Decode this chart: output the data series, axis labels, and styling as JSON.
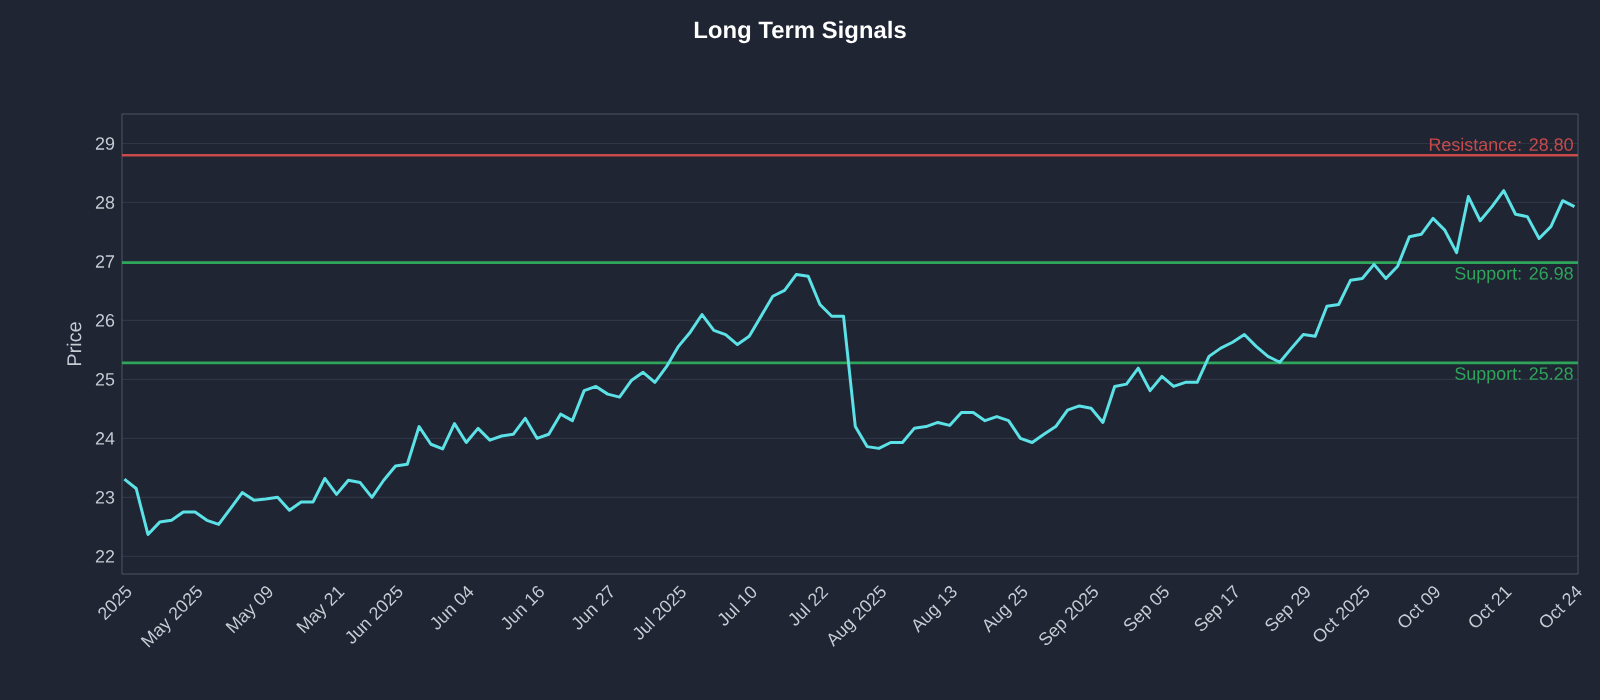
{
  "chart_data": {
    "type": "line",
    "title": "Long Term Signals",
    "ylabel": "Price",
    "categories": [
      "2025",
      null,
      null,
      null,
      null,
      null,
      "May 2025",
      null,
      null,
      null,
      null,
      null,
      "May 09",
      null,
      null,
      null,
      null,
      null,
      "May 21",
      null,
      null,
      null,
      null,
      "Jun 2025",
      null,
      null,
      null,
      null,
      null,
      "Jun 04",
      null,
      null,
      null,
      null,
      null,
      "Jun 16",
      null,
      null,
      null,
      null,
      null,
      "Jun 27",
      null,
      null,
      null,
      null,
      null,
      "Jul 2025",
      null,
      null,
      null,
      null,
      null,
      "Jul 10",
      null,
      null,
      null,
      null,
      null,
      "Jul 22",
      null,
      null,
      null,
      null,
      "Aug 2025",
      null,
      null,
      null,
      null,
      null,
      "Aug 13",
      null,
      null,
      null,
      null,
      null,
      "Aug 25",
      null,
      null,
      null,
      null,
      null,
      "Sep 2025",
      null,
      null,
      null,
      null,
      null,
      "Sep 05",
      null,
      null,
      null,
      null,
      null,
      "Sep 17",
      null,
      null,
      null,
      null,
      null,
      "Sep 29",
      null,
      null,
      null,
      null,
      "Oct 2025",
      null,
      null,
      null,
      null,
      null,
      "Oct 09",
      null,
      null,
      null,
      null,
      null,
      "Oct 21",
      null,
      null,
      null,
      null,
      null,
      "Oct 24"
    ],
    "series": [
      {
        "color": "#5ce1e6",
        "values": [
          23.31,
          23.15,
          22.37,
          22.58,
          22.61,
          22.75,
          22.75,
          22.61,
          22.54,
          22.81,
          23.08,
          22.95,
          22.97,
          23.0,
          22.78,
          22.92,
          22.92,
          23.32,
          23.05,
          23.29,
          23.25,
          23.0,
          23.29,
          23.53,
          23.56,
          24.2,
          23.9,
          23.82,
          24.25,
          23.93,
          24.17,
          23.97,
          24.04,
          24.07,
          24.34,
          24.0,
          24.07,
          24.41,
          24.3,
          24.81,
          24.88,
          24.75,
          24.7,
          24.98,
          25.12,
          24.95,
          25.22,
          25.56,
          25.8,
          26.1,
          25.83,
          25.76,
          25.59,
          25.73,
          26.07,
          26.41,
          26.51,
          26.78,
          26.75,
          26.27,
          26.07,
          26.07,
          24.2,
          23.86,
          23.83,
          23.93,
          23.93,
          24.17,
          24.2,
          24.27,
          24.22,
          24.44,
          24.44,
          24.3,
          24.37,
          24.3,
          24.0,
          23.93,
          24.07,
          24.2,
          24.48,
          24.55,
          24.51,
          24.27,
          24.88,
          24.92,
          25.19,
          24.81,
          25.05,
          24.88,
          24.95,
          24.95,
          25.39,
          25.53,
          25.63,
          25.76,
          25.56,
          25.39,
          25.29,
          25.53,
          25.76,
          25.73,
          26.24,
          26.27,
          26.68,
          26.71,
          26.95,
          26.71,
          26.92,
          27.42,
          27.46,
          27.73,
          27.53,
          27.15,
          28.1,
          27.69,
          27.93,
          28.2,
          27.8,
          27.76,
          27.39,
          27.59,
          28.03,
          27.93
        ]
      }
    ],
    "ylim": [
      21.7,
      29.5
    ],
    "yticks": [
      22,
      23,
      24,
      25,
      26,
      27,
      28,
      29
    ],
    "grid": "y",
    "ref_lines": [
      {
        "axis": "y",
        "value": 28.8,
        "label": "Resistance: 28.80",
        "color": "#c94a4a"
      },
      {
        "axis": "y",
        "value": 26.98,
        "label": "Support: 26.98",
        "color": "#2ea55a"
      },
      {
        "axis": "y",
        "value": 25.28,
        "label": "Support: 25.28",
        "color": "#2ea55a"
      }
    ]
  }
}
